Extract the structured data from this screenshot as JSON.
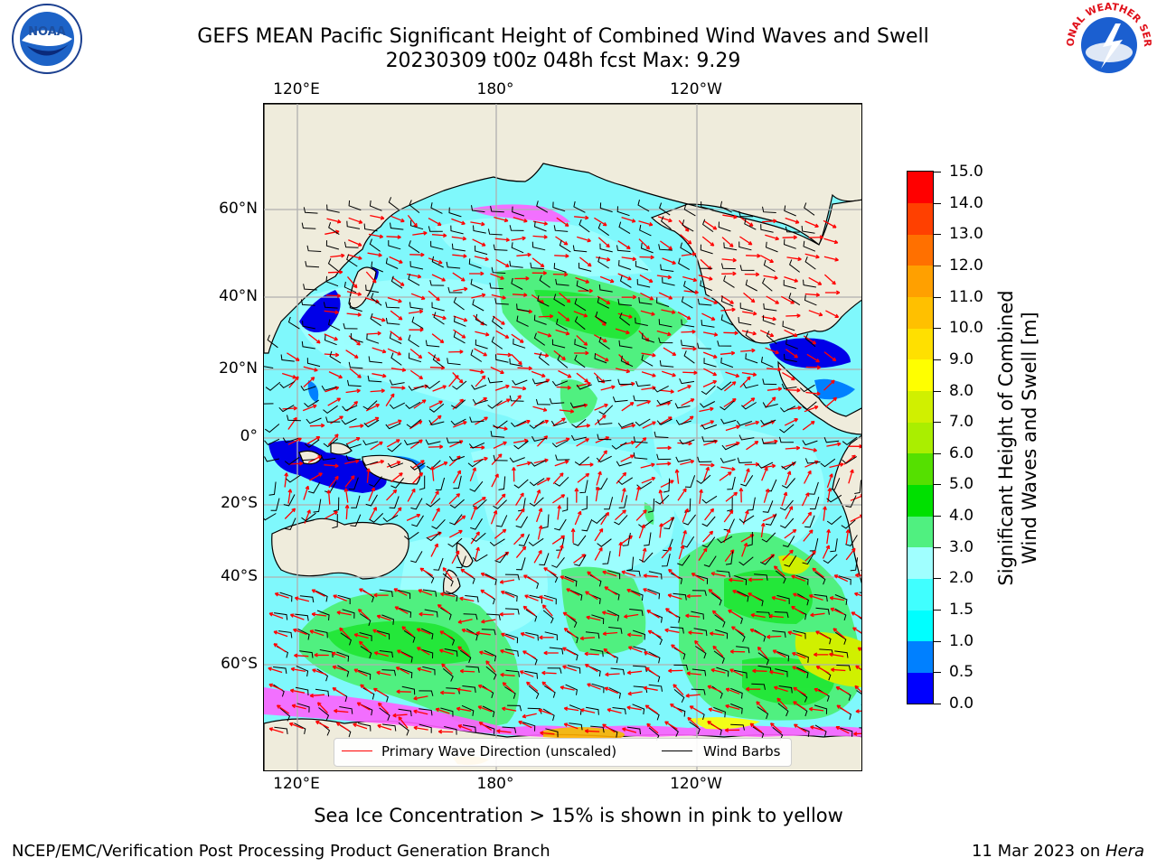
{
  "title_line1": "GEFS MEAN Pacific Significant Height of Combined Wind Waves and Swell",
  "title_line2": "20230309 t00z 048h fcst   Max: 9.29",
  "logos": {
    "left": {
      "icon": "noaa-logo",
      "text": "NOAA"
    },
    "right": {
      "icon": "nws-logo",
      "text": "NATIONAL WEATHER SERVICE"
    }
  },
  "map": {
    "lon_ticks": [
      "120°E",
      "180°",
      "120°W"
    ],
    "lat_ticks": [
      "60°N",
      "40°N",
      "20°N",
      "0°",
      "20°S",
      "40°S",
      "60°S"
    ],
    "legend": {
      "wave_dir": "Primary Wave Direction (unscaled)",
      "wind_barbs": "Wind Barbs",
      "wave_dir_color": "#ff0000",
      "wind_barb_color": "#000000"
    },
    "colors": {
      "land": "#efecdc",
      "ocean_background": "#7ff8fc",
      "graticule": "#b0b0b0"
    }
  },
  "colorbar": {
    "title_line1": "Significant Height of Combined",
    "title_line2": "Wind Waves and Swell [m]",
    "ticks": [
      "0.0",
      "0.5",
      "1.0",
      "1.5",
      "2.0",
      "3.0",
      "4.0",
      "5.0",
      "6.0",
      "7.0",
      "8.0",
      "9.0",
      "10.0",
      "11.0",
      "12.0",
      "13.0",
      "14.0",
      "15.0"
    ],
    "colors": [
      "#0000ff",
      "#0080ff",
      "#00ffff",
      "#40ffff",
      "#a0ffff",
      "#50f080",
      "#00e000",
      "#55e000",
      "#aaee00",
      "#d0f000",
      "#ffff00",
      "#ffe000",
      "#ffc000",
      "#ffa000",
      "#ff7000",
      "#ff4000",
      "#ff0000"
    ]
  },
  "sea_ice_note": "Sea Ice Concentration > 15% is shown in pink to yellow",
  "footer_left": "NCEP/EMC/Verification Post Processing Product Generation Branch",
  "footer_right_date": "11 Mar 2023 on ",
  "footer_right_host": "Hera"
}
